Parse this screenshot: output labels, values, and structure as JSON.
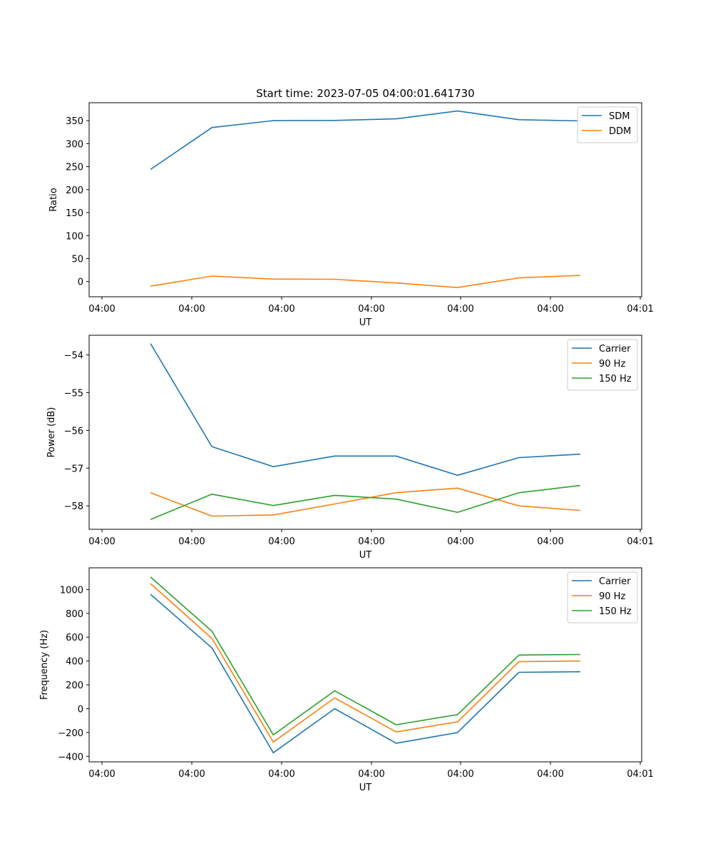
{
  "figure_title": "Start time: 2023-07-05 04:00:01.641730",
  "chart_data": [
    {
      "type": "line",
      "title": "Start time: 2023-07-05 04:00:01.641730",
      "xlabel": "UT",
      "ylabel": "Ratio",
      "x_tick_labels": [
        "04:00",
        "04:00",
        "04:00",
        "04:00",
        "04:00",
        "04:00",
        "04:01"
      ],
      "x_points": [
        1,
        2,
        3,
        4,
        5,
        6,
        7,
        8
      ],
      "xlim": [
        0,
        9
      ],
      "ylim": [
        -33,
        389
      ],
      "y_ticks": [
        0,
        50,
        100,
        150,
        200,
        250,
        300,
        350
      ],
      "y_tick_labels": [
        "0",
        "50",
        "100",
        "150",
        "200",
        "250",
        "300",
        "350"
      ],
      "legend_position": "top-right",
      "series": [
        {
          "name": "SDM",
          "color": "#1f77b4",
          "values": [
            244,
            335,
            350,
            350.5,
            354,
            371,
            352,
            349.5
          ]
        },
        {
          "name": "DDM",
          "color": "#ff7f0e",
          "values": [
            -10,
            12,
            5.5,
            5,
            -3,
            -13,
            8,
            13.5
          ]
        }
      ]
    },
    {
      "type": "line",
      "title": "",
      "xlabel": "UT",
      "ylabel": "Power (dB)",
      "x_tick_labels": [
        "04:00",
        "04:00",
        "04:00",
        "04:00",
        "04:00",
        "04:00",
        "04:01"
      ],
      "x_points": [
        1,
        2,
        3,
        4,
        5,
        6,
        7,
        8
      ],
      "xlim": [
        0,
        9
      ],
      "ylim": [
        -58.62,
        -53.48
      ],
      "y_ticks": [
        -58,
        -57,
        -56,
        -55,
        -54
      ],
      "y_tick_labels": [
        "−58",
        "−57",
        "−56",
        "−55",
        "−54"
      ],
      "legend_position": "top-right",
      "series": [
        {
          "name": "Carrier",
          "color": "#1f77b4",
          "values": [
            -53.7,
            -56.43,
            -56.96,
            -56.68,
            -56.68,
            -57.19,
            -56.72,
            -56.63
          ]
        },
        {
          "name": "90 Hz",
          "color": "#ff7f0e",
          "values": [
            -57.65,
            -58.27,
            -58.24,
            -57.95,
            -57.65,
            -57.53,
            -58.0,
            -58.12
          ]
        },
        {
          "name": "150 Hz",
          "color": "#2ca02c",
          "values": [
            -58.36,
            -57.69,
            -57.99,
            -57.72,
            -57.82,
            -58.17,
            -57.65,
            -57.46
          ]
        }
      ]
    },
    {
      "type": "line",
      "title": "",
      "xlabel": "UT",
      "ylabel": "Frequency (Hz)",
      "x_tick_labels": [
        "04:00",
        "04:00",
        "04:00",
        "04:00",
        "04:00",
        "04:00",
        "04:01"
      ],
      "x_points": [
        1,
        2,
        3,
        4,
        5,
        6,
        7,
        8
      ],
      "xlim": [
        0,
        9
      ],
      "ylim": [
        -446,
        1182
      ],
      "y_ticks": [
        -400,
        -200,
        0,
        200,
        400,
        600,
        800,
        1000
      ],
      "y_tick_labels": [
        "−400",
        "−200",
        "0",
        "200",
        "400",
        "600",
        "800",
        "1000"
      ],
      "legend_position": "top-right",
      "series": [
        {
          "name": "Carrier",
          "color": "#1f77b4",
          "values": [
            960,
            510,
            -370,
            0,
            -290,
            -200,
            305,
            310
          ]
        },
        {
          "name": "90 Hz",
          "color": "#ff7f0e",
          "values": [
            1050,
            590,
            -280,
            90,
            -195,
            -110,
            395,
            400
          ]
        },
        {
          "name": "150 Hz",
          "color": "#2ca02c",
          "values": [
            1105,
            650,
            -220,
            150,
            -135,
            -50,
            450,
            455
          ]
        }
      ]
    }
  ]
}
